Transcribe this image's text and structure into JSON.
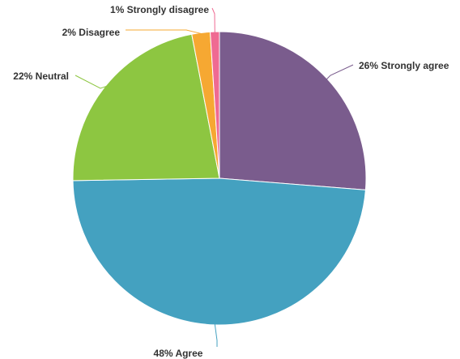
{
  "chart_data": {
    "type": "pie",
    "slices": [
      {
        "label": "26% Strongly agree",
        "value": 26,
        "color": "#7a5c8d"
      },
      {
        "label": "48% Agree",
        "value": 48,
        "color": "#44a1c0"
      },
      {
        "label": "22% Neutral",
        "value": 22,
        "color": "#8dc641"
      },
      {
        "label": "2% Disagree",
        "value": 2,
        "color": "#f6a832"
      },
      {
        "label": "1% Strongly disagree",
        "value": 1,
        "color": "#ef6a92"
      }
    ],
    "start_angle_deg": 0,
    "direction": "clockwise",
    "legend": "none"
  }
}
